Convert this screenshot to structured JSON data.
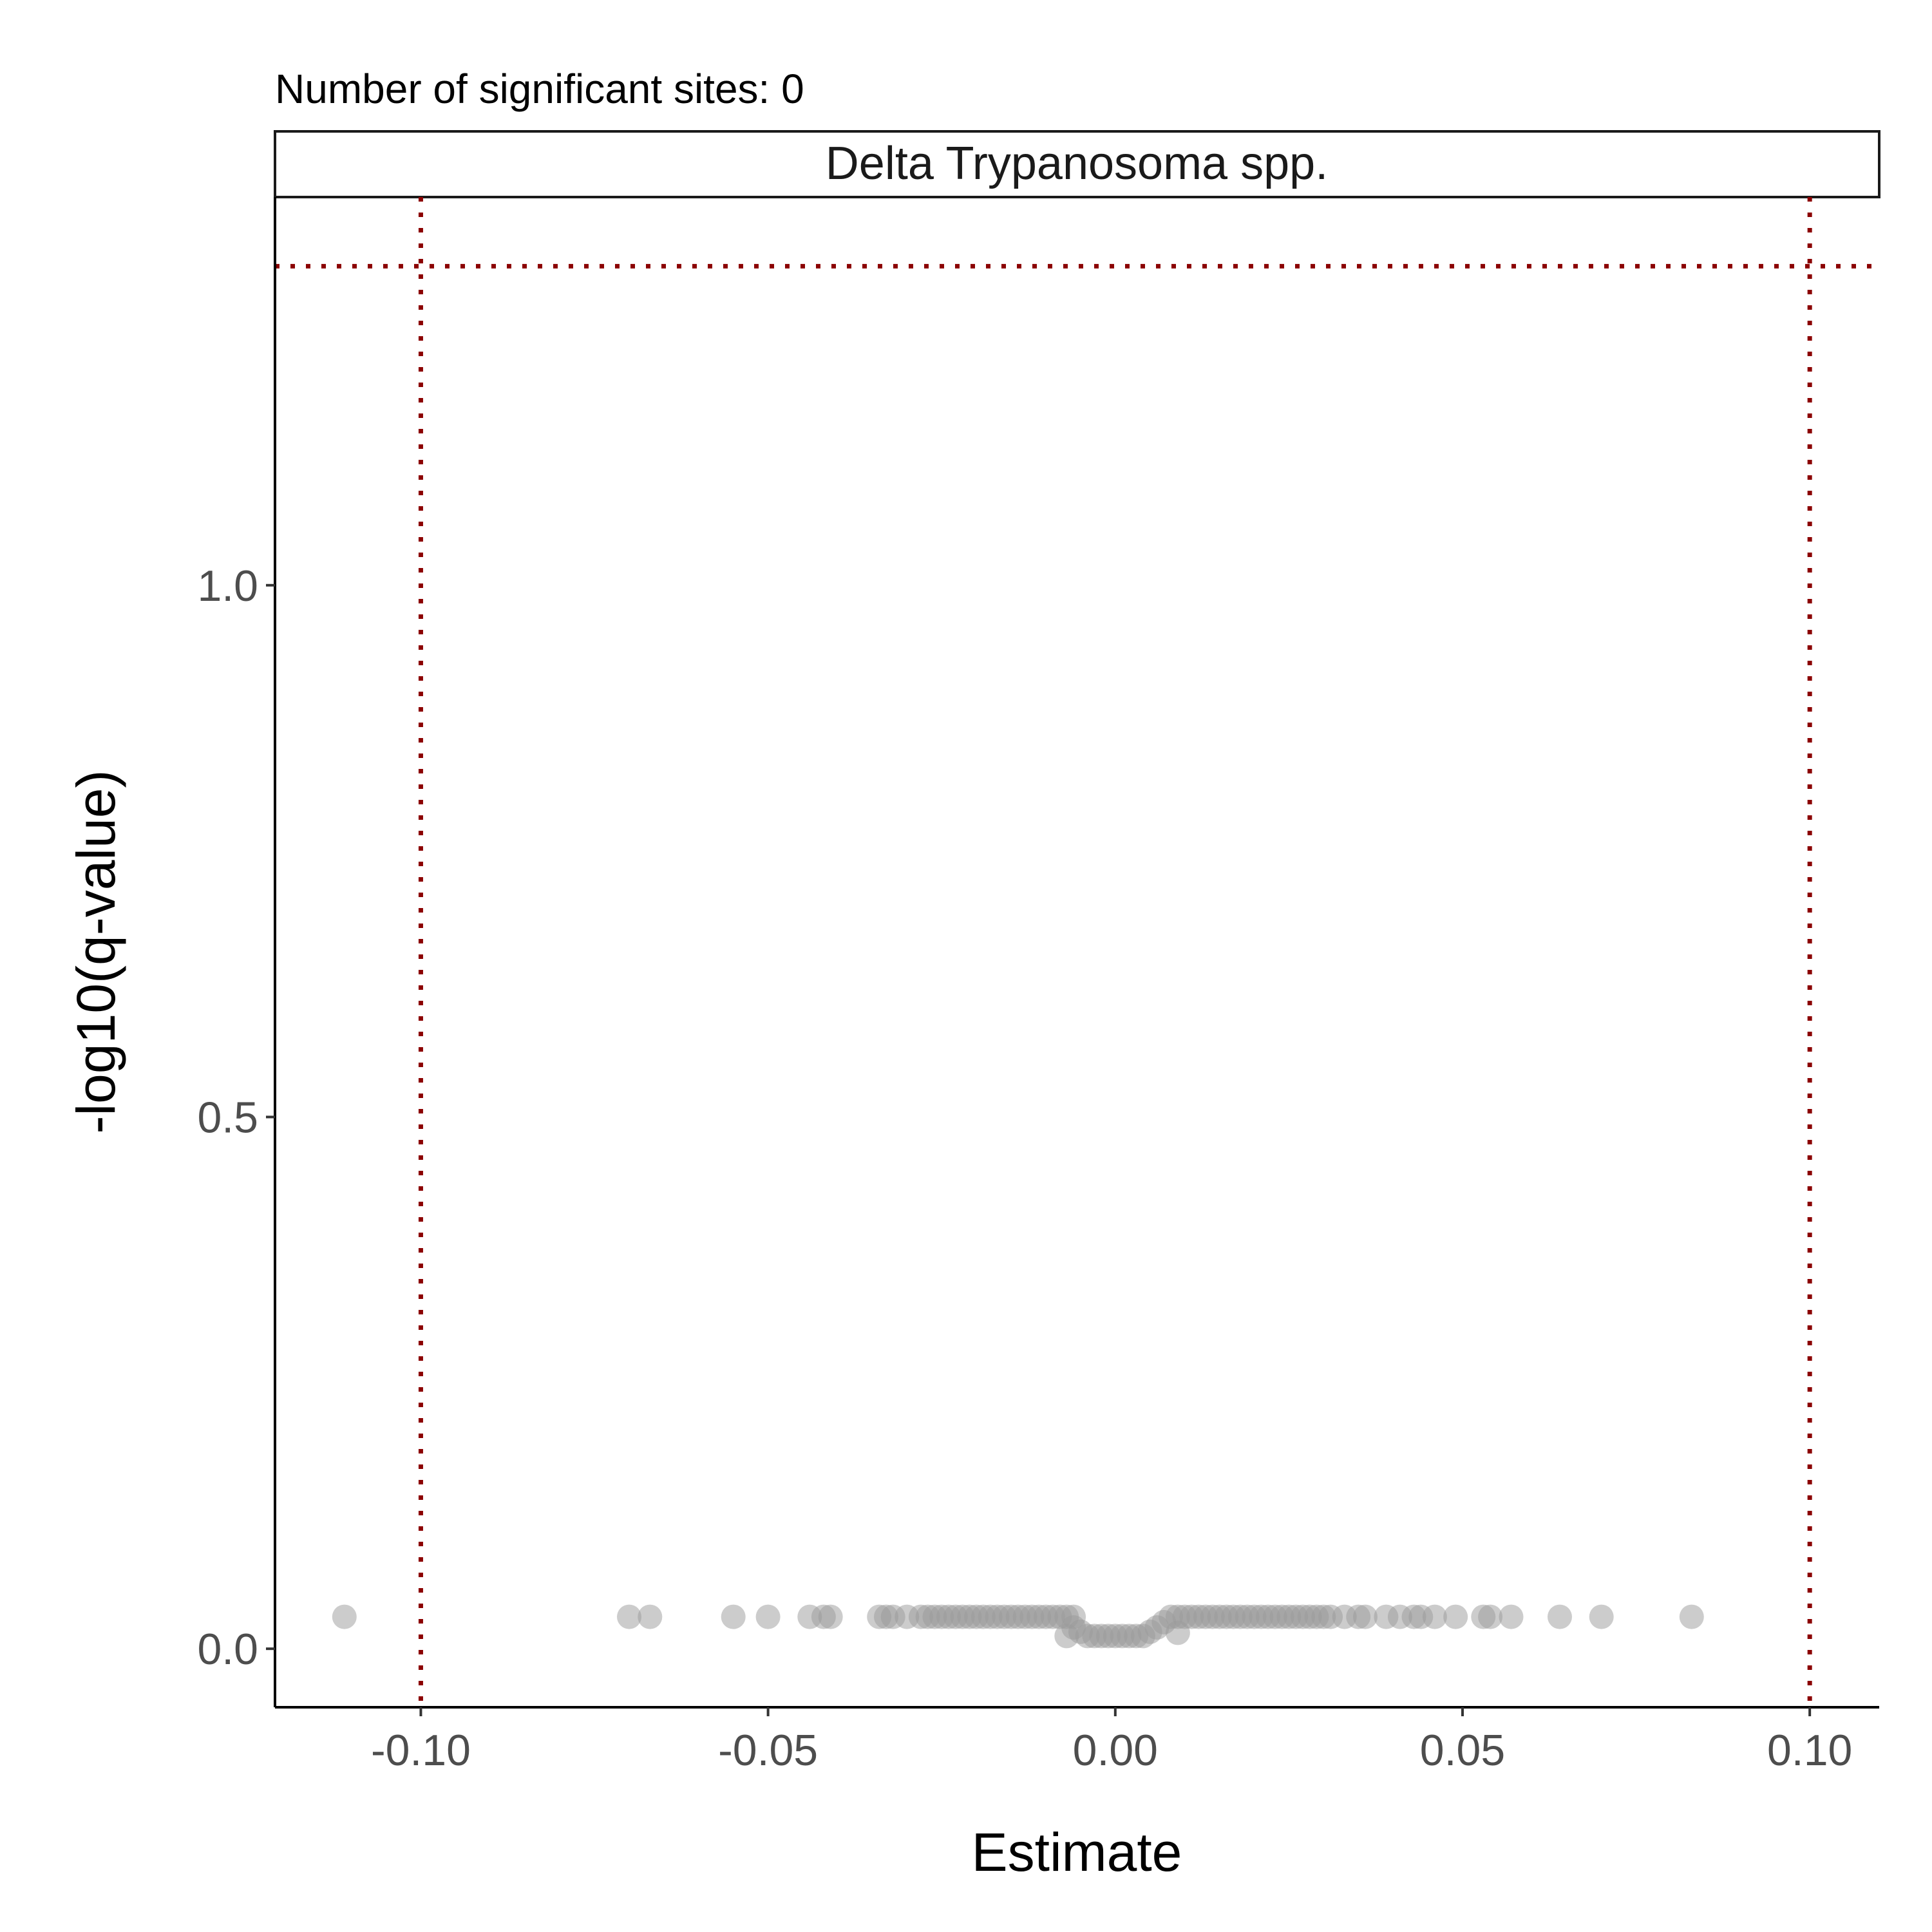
{
  "chart_data": {
    "type": "scatter",
    "title": "Number of significant sites: 0",
    "panel_label": "Delta Trypanosoma spp.",
    "xlabel": "Estimate",
    "ylabel": "-log10(q-value)",
    "xlim": [
      -0.121,
      0.11
    ],
    "ylim": [
      -0.055,
      1.365
    ],
    "x_ticks": [
      -0.1,
      -0.05,
      0.0,
      0.05,
      0.1
    ],
    "x_tick_labels": [
      "-0.10",
      "-0.05",
      "0.00",
      "0.05",
      "0.10"
    ],
    "y_ticks": [
      0.0,
      0.5,
      1.0
    ],
    "y_tick_labels": [
      "0.0",
      "0.5",
      "1.0"
    ],
    "grid": false,
    "legend": "none",
    "point_color": "#999999",
    "threshold_color": "#8B0000",
    "thresholds": {
      "x": [
        -0.1,
        0.1
      ],
      "y": 1.3
    },
    "points": [
      {
        "x": -0.111,
        "y": 0.03
      },
      {
        "x": -0.07,
        "y": 0.03
      },
      {
        "x": -0.067,
        "y": 0.03
      },
      {
        "x": -0.055,
        "y": 0.03
      },
      {
        "x": -0.05,
        "y": 0.03
      },
      {
        "x": -0.044,
        "y": 0.03
      },
      {
        "x": -0.042,
        "y": 0.03
      },
      {
        "x": -0.041,
        "y": 0.03
      },
      {
        "x": -0.034,
        "y": 0.03
      },
      {
        "x": -0.033,
        "y": 0.03
      },
      {
        "x": -0.032,
        "y": 0.03
      },
      {
        "x": -0.03,
        "y": 0.03
      },
      {
        "x": -0.028,
        "y": 0.03
      },
      {
        "x": -0.027,
        "y": 0.03
      },
      {
        "x": -0.026,
        "y": 0.03
      },
      {
        "x": -0.025,
        "y": 0.03
      },
      {
        "x": -0.024,
        "y": 0.03
      },
      {
        "x": -0.023,
        "y": 0.03
      },
      {
        "x": -0.022,
        "y": 0.03
      },
      {
        "x": -0.021,
        "y": 0.03
      },
      {
        "x": -0.02,
        "y": 0.03
      },
      {
        "x": -0.019,
        "y": 0.03
      },
      {
        "x": -0.018,
        "y": 0.03
      },
      {
        "x": -0.017,
        "y": 0.03
      },
      {
        "x": -0.016,
        "y": 0.03
      },
      {
        "x": -0.015,
        "y": 0.03
      },
      {
        "x": -0.014,
        "y": 0.03
      },
      {
        "x": -0.013,
        "y": 0.03
      },
      {
        "x": -0.012,
        "y": 0.03
      },
      {
        "x": -0.011,
        "y": 0.03
      },
      {
        "x": -0.01,
        "y": 0.03
      },
      {
        "x": -0.009,
        "y": 0.03
      },
      {
        "x": -0.008,
        "y": 0.03
      },
      {
        "x": -0.007,
        "y": 0.03
      },
      {
        "x": -0.006,
        "y": 0.03
      },
      {
        "x": -0.007,
        "y": 0.012
      },
      {
        "x": -0.006,
        "y": 0.02
      },
      {
        "x": -0.005,
        "y": 0.016
      },
      {
        "x": -0.004,
        "y": 0.012
      },
      {
        "x": -0.003,
        "y": 0.012
      },
      {
        "x": -0.002,
        "y": 0.012
      },
      {
        "x": -0.001,
        "y": 0.012
      },
      {
        "x": 0.0,
        "y": 0.012
      },
      {
        "x": 0.001,
        "y": 0.012
      },
      {
        "x": 0.002,
        "y": 0.012
      },
      {
        "x": 0.003,
        "y": 0.012
      },
      {
        "x": 0.004,
        "y": 0.012
      },
      {
        "x": 0.005,
        "y": 0.016
      },
      {
        "x": 0.006,
        "y": 0.02
      },
      {
        "x": 0.007,
        "y": 0.025
      },
      {
        "x": 0.008,
        "y": 0.03
      },
      {
        "x": 0.009,
        "y": 0.015
      },
      {
        "x": 0.009,
        "y": 0.03
      },
      {
        "x": 0.01,
        "y": 0.03
      },
      {
        "x": 0.011,
        "y": 0.03
      },
      {
        "x": 0.012,
        "y": 0.03
      },
      {
        "x": 0.013,
        "y": 0.03
      },
      {
        "x": 0.014,
        "y": 0.03
      },
      {
        "x": 0.015,
        "y": 0.03
      },
      {
        "x": 0.016,
        "y": 0.03
      },
      {
        "x": 0.017,
        "y": 0.03
      },
      {
        "x": 0.018,
        "y": 0.03
      },
      {
        "x": 0.019,
        "y": 0.03
      },
      {
        "x": 0.02,
        "y": 0.03
      },
      {
        "x": 0.021,
        "y": 0.03
      },
      {
        "x": 0.022,
        "y": 0.03
      },
      {
        "x": 0.023,
        "y": 0.03
      },
      {
        "x": 0.024,
        "y": 0.03
      },
      {
        "x": 0.025,
        "y": 0.03
      },
      {
        "x": 0.026,
        "y": 0.03
      },
      {
        "x": 0.027,
        "y": 0.03
      },
      {
        "x": 0.028,
        "y": 0.03
      },
      {
        "x": 0.029,
        "y": 0.03
      },
      {
        "x": 0.03,
        "y": 0.03
      },
      {
        "x": 0.031,
        "y": 0.03
      },
      {
        "x": 0.033,
        "y": 0.03
      },
      {
        "x": 0.035,
        "y": 0.03
      },
      {
        "x": 0.036,
        "y": 0.03
      },
      {
        "x": 0.039,
        "y": 0.03
      },
      {
        "x": 0.041,
        "y": 0.03
      },
      {
        "x": 0.043,
        "y": 0.03
      },
      {
        "x": 0.044,
        "y": 0.03
      },
      {
        "x": 0.046,
        "y": 0.03
      },
      {
        "x": 0.049,
        "y": 0.03
      },
      {
        "x": 0.053,
        "y": 0.03
      },
      {
        "x": 0.054,
        "y": 0.03
      },
      {
        "x": 0.057,
        "y": 0.03
      },
      {
        "x": 0.064,
        "y": 0.03
      },
      {
        "x": 0.07,
        "y": 0.03
      },
      {
        "x": 0.083,
        "y": 0.03
      }
    ]
  }
}
